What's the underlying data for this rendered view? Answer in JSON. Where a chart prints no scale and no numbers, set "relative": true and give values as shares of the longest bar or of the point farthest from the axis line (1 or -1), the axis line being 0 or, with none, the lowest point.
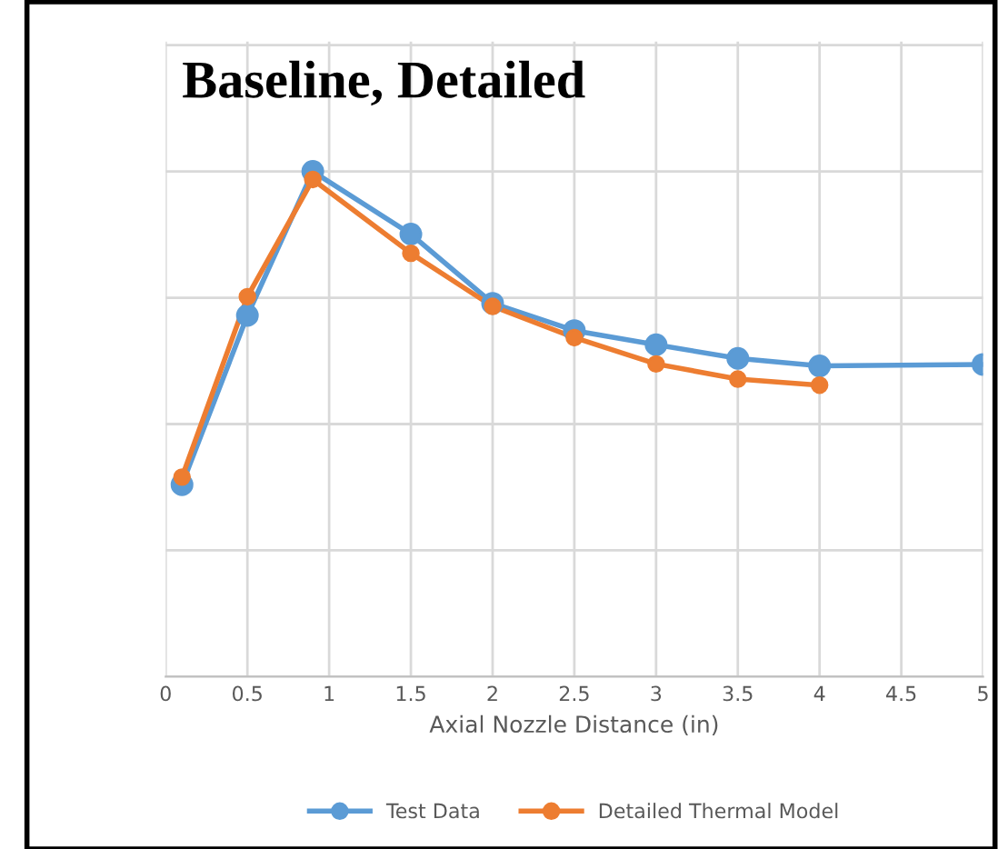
{
  "chart_data": {
    "type": "line",
    "title": "Baseline, Detailed",
    "xlabel": "Axial Nozzle Distance (in)",
    "relative": true,
    "xlim": [
      0,
      5
    ],
    "xticks": [
      0,
      0.5,
      1,
      1.5,
      2,
      2.5,
      3,
      3.5,
      4,
      4.5,
      5
    ],
    "tick_labels": "x",
    "grid": true,
    "legend": "bottom",
    "marker": "circle",
    "line_style": "solid",
    "series": [
      {
        "name": "Test Data",
        "color": "#5b9bd5",
        "x": [
          0.1,
          0.5,
          0.9,
          1.5,
          2,
          2.5,
          3,
          3.5,
          4,
          5
        ],
        "values": [
          0.38,
          0.715,
          1,
          0.876,
          0.739,
          0.685,
          0.657,
          0.63,
          0.615,
          0.618
        ]
      },
      {
        "name": "Detailed Thermal Model",
        "color": "#ed7d31",
        "x": [
          0.1,
          0.5,
          0.9,
          1.5,
          2,
          2.5,
          3,
          3.5,
          4
        ],
        "values": [
          0.395,
          0.752,
          0.984,
          0.838,
          0.733,
          0.671,
          0.619,
          0.589,
          0.577
        ]
      }
    ]
  }
}
